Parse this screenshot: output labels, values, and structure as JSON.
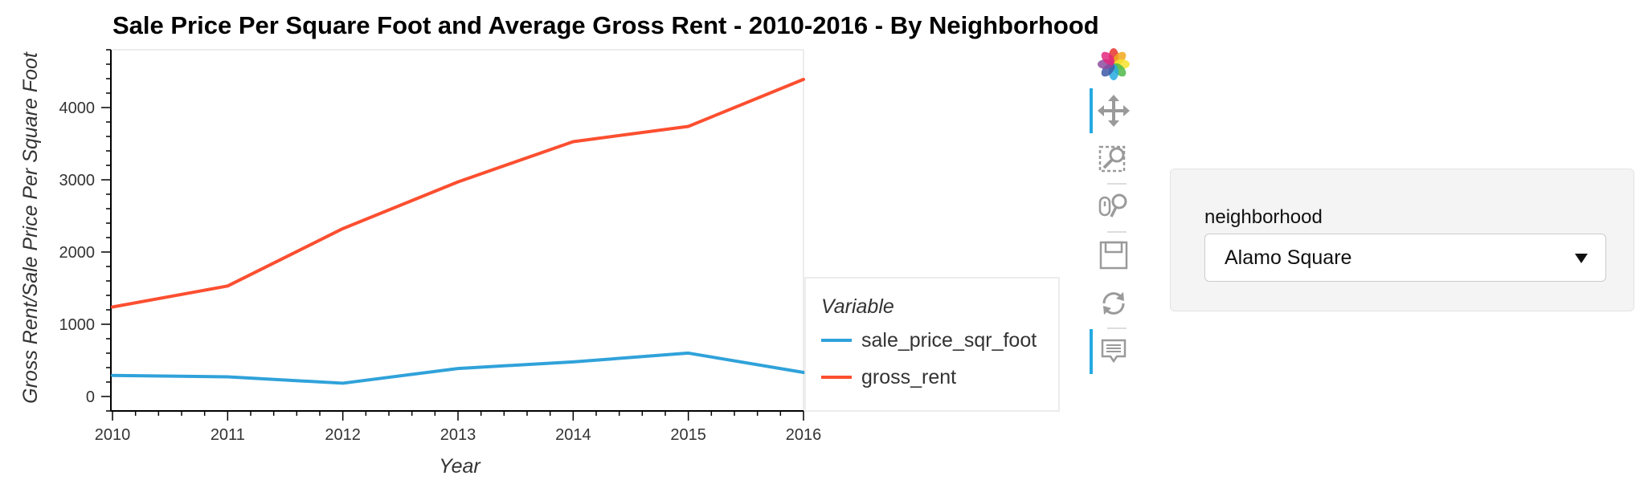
{
  "chart_data": {
    "type": "line",
    "title": "Sale Price Per Square Foot and Average Gross Rent - 2010-2016 - By Neighborhood",
    "xlabel": "Year",
    "ylabel": "Gross Rent/Sale Price Per Square Foot",
    "x": [
      2010,
      2011,
      2012,
      2013,
      2014,
      2015,
      2016
    ],
    "xlim": [
      2010,
      2016
    ],
    "ylim": [
      -200,
      4800
    ],
    "x_ticks": [
      "2010",
      "2011",
      "2012",
      "2013",
      "2014",
      "2015",
      "2016"
    ],
    "y_ticks": [
      "0",
      "1000",
      "2000",
      "3000",
      "4000"
    ],
    "legend_title": "Variable",
    "legend_position": "right",
    "grid": false,
    "series": [
      {
        "name": "sale_price_sqr_foot",
        "color": "#30a2da",
        "values": [
          291,
          272,
          184,
          388,
          479,
          601,
          333
        ]
      },
      {
        "name": "gross_rent",
        "color": "#fc4f30",
        "values": [
          1239,
          1530,
          2324,
          2971,
          3528,
          3739,
          4390
        ]
      }
    ]
  },
  "toolbar": {
    "tools": [
      {
        "icon": "bokeh-logo-icon"
      },
      {
        "icon": "pan-icon"
      },
      {
        "icon": "box-zoom-icon"
      },
      {
        "icon": "wheel-zoom-icon"
      },
      {
        "icon": "save-icon"
      },
      {
        "icon": "reset-icon"
      },
      {
        "icon": "hover-icon"
      }
    ]
  },
  "widget": {
    "label": "neighborhood",
    "selected": "Alamo Square",
    "caret_icon": "caret-down-icon"
  }
}
